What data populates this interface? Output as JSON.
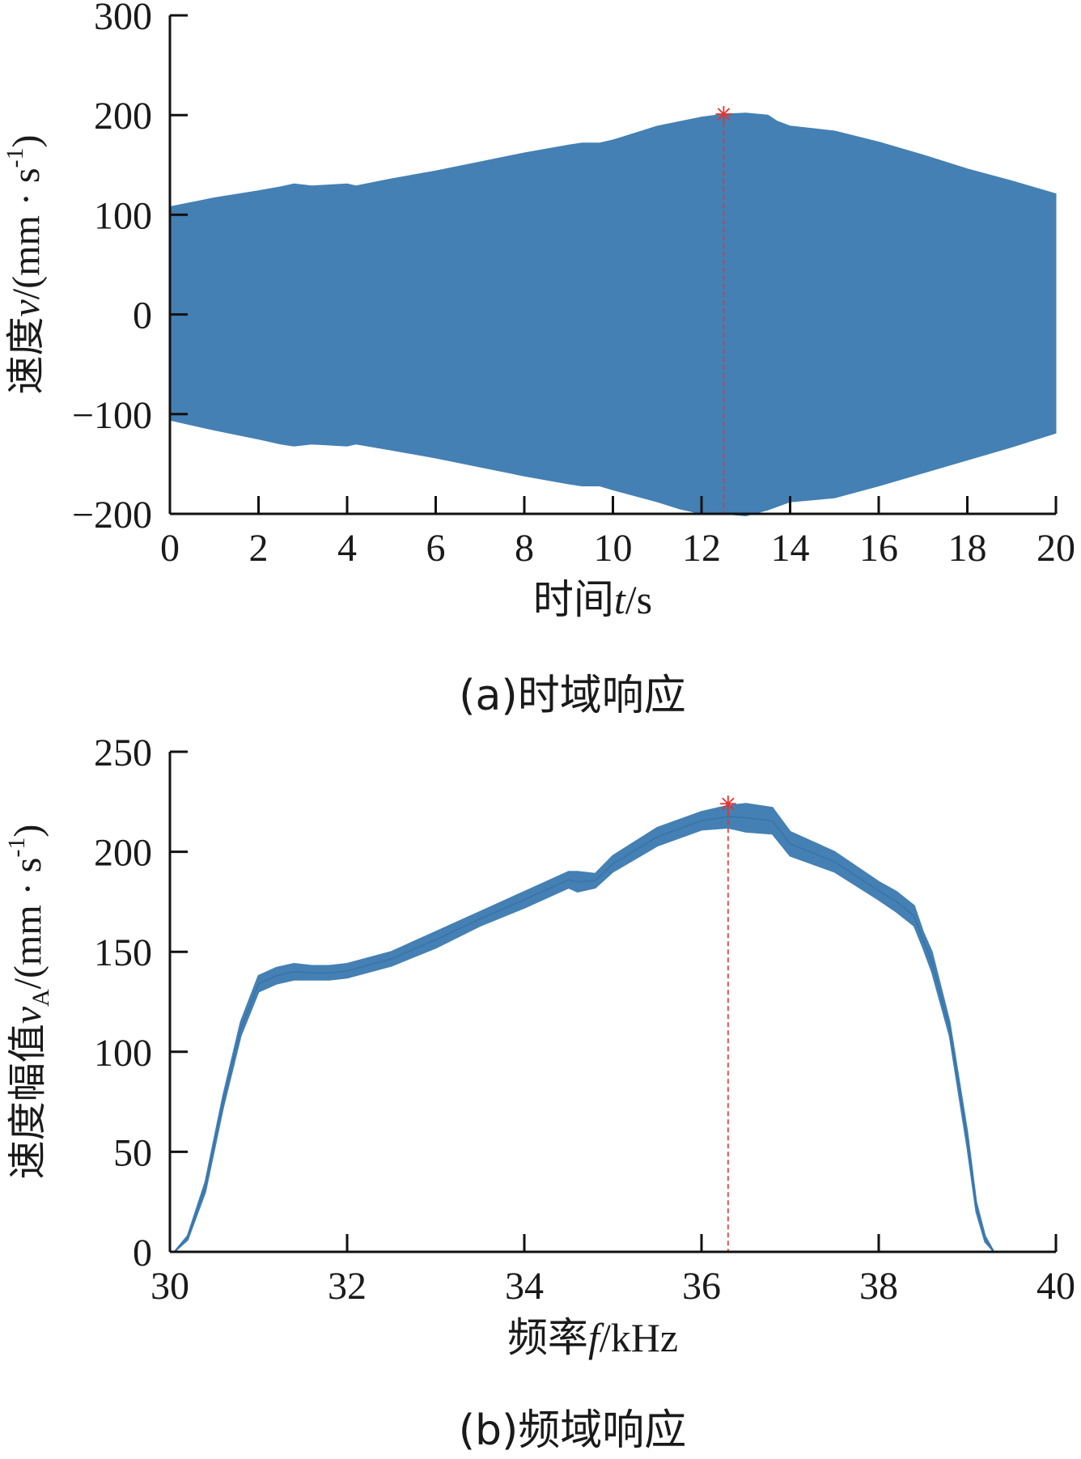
{
  "chart_data": [
    {
      "type": "area",
      "panel_caption": "(a)时域响应",
      "ylabel": {
        "text": "速度",
        "var": "v",
        "unit_open": "/(mm · s",
        "exp": "-1",
        "unit_close": ")"
      },
      "xlabel": {
        "text": "时间",
        "var": "t",
        "unit": "/s"
      },
      "xlim": [
        0,
        20
      ],
      "ylim": [
        -200,
        300
      ],
      "x_ticks": [
        0,
        2,
        4,
        6,
        8,
        10,
        12,
        14,
        16,
        18,
        20
      ],
      "y_ticks": [
        -200,
        -100,
        0,
        100,
        200,
        300
      ],
      "x_tick_labels": [
        "0",
        "2",
        "4",
        "6",
        "8",
        "10",
        "12",
        "14",
        "16",
        "18",
        "20"
      ],
      "y_tick_labels": [
        "−200",
        "−100",
        "0",
        "100",
        "200",
        "300"
      ],
      "color": "#4480b3",
      "series": [
        {
          "envelope_upper": {
            "x": [
              0,
              1,
              2,
              2.5,
              2.8,
              3.2,
              4,
              4.2,
              5,
              6,
              7,
              8,
              9,
              9.3,
              9.7,
              10,
              11,
              12,
              12.5,
              13,
              13.5,
              13.7,
              14,
              15,
              16,
              17,
              18,
              19,
              20
            ],
            "y": [
              108,
              117,
              124,
              128,
              131,
              129,
              131,
              129,
              136,
              144,
              153,
              162,
              170,
              172,
              172,
              175,
              189,
              198,
              201,
              202,
              200,
              194,
              189,
              184,
              173,
              160,
              146,
              134,
              121
            ]
          },
          "envelope_lower": {
            "x": [
              0,
              1,
              2,
              2.5,
              2.8,
              3.2,
              4,
              4.2,
              5,
              6,
              7,
              8,
              9,
              9.3,
              9.7,
              10,
              11,
              11.5,
              12,
              12.5,
              13,
              13.5,
              14,
              15,
              16,
              17,
              18,
              19,
              20
            ],
            "y": [
              -106,
              -116,
              -125,
              -130,
              -132,
              -130,
              -132,
              -130,
              -136,
              -144,
              -153,
              -162,
              -170,
              -172,
              -172,
              -176,
              -188,
              -195,
              -200,
              -200,
              -202,
              -196,
              -188,
              -184,
              -172,
              -159,
              -146,
              -133,
              -119
            ]
          }
        }
      ],
      "marker": {
        "x": 12.5,
        "y": 201,
        "symbol": "*",
        "color": "#e8312f"
      },
      "marker_line": {
        "x": 12.5,
        "y_from": 201,
        "y_to": -200,
        "style": "dashed",
        "color": "#e8312f"
      }
    },
    {
      "type": "area",
      "panel_caption": "(b)频域响应",
      "ylabel": {
        "text": "速度幅值",
        "var": "v",
        "sub": "A",
        "unit_open": "/(mm · s",
        "exp": "-1",
        "unit_close": ")"
      },
      "xlabel": {
        "text": "频率",
        "var": "f",
        "unit": "/kHz"
      },
      "xlim": [
        30,
        40
      ],
      "ylim": [
        0,
        250
      ],
      "x_ticks": [
        30,
        32,
        34,
        36,
        38,
        40
      ],
      "y_ticks": [
        0,
        50,
        100,
        150,
        200,
        250
      ],
      "x_tick_labels": [
        "30",
        "32",
        "34",
        "36",
        "38",
        "40"
      ],
      "y_tick_labels": [
        "0",
        "50",
        "100",
        "150",
        "200",
        "250"
      ],
      "color": "#4480b3",
      "series": [
        {
          "band_upper": {
            "x": [
              30.05,
              30.2,
              30.4,
              30.6,
              30.8,
              31.0,
              31.2,
              31.4,
              31.6,
              31.8,
              32.0,
              32.5,
              33.0,
              33.5,
              34.0,
              34.5,
              34.6,
              34.8,
              35.0,
              35.5,
              36.0,
              36.3,
              36.5,
              36.8,
              37.0,
              37.5,
              38.0,
              38.2,
              38.4,
              38.5,
              38.6,
              38.8,
              39.0,
              39.1,
              39.2,
              39.3
            ],
            "y": [
              0,
              8,
              35,
              78,
              115,
              138,
              142,
              144,
              143,
              143,
              144,
              150,
              160,
              170,
              180,
              190,
              190,
              189,
              198,
              212,
              220,
              223,
              224,
              222,
              210,
              200,
              185,
              180,
              173,
              160,
              150,
              115,
              60,
              25,
              8,
              0
            ]
          },
          "band_lower": {
            "x": [
              30.05,
              30.2,
              30.4,
              30.6,
              30.8,
              31.0,
              31.2,
              31.4,
              31.6,
              31.8,
              32.0,
              32.5,
              33.0,
              33.5,
              34.0,
              34.5,
              34.6,
              34.8,
              35.0,
              35.5,
              36.0,
              36.3,
              36.5,
              36.8,
              37.0,
              37.5,
              38.0,
              38.2,
              38.4,
              38.5,
              38.6,
              38.8,
              39.0,
              39.1,
              39.2,
              39.3
            ],
            "y": [
              0,
              6,
              30,
              72,
              108,
              130,
              134,
              136,
              136,
              136,
              137,
              143,
              152,
              163,
              172,
              182,
              180,
              182,
              190,
              203,
              211,
              212,
              210,
              209,
              198,
              190,
              176,
              170,
              163,
              152,
              140,
              108,
              52,
              20,
              5,
              0
            ]
          }
        }
      ],
      "marker": {
        "x": 36.3,
        "y": 224,
        "symbol": "*",
        "color": "#e8312f"
      },
      "marker_line": {
        "x": 36.3,
        "y_from": 224,
        "y_to": 0,
        "style": "dashed",
        "color": "#e8312f"
      }
    }
  ]
}
